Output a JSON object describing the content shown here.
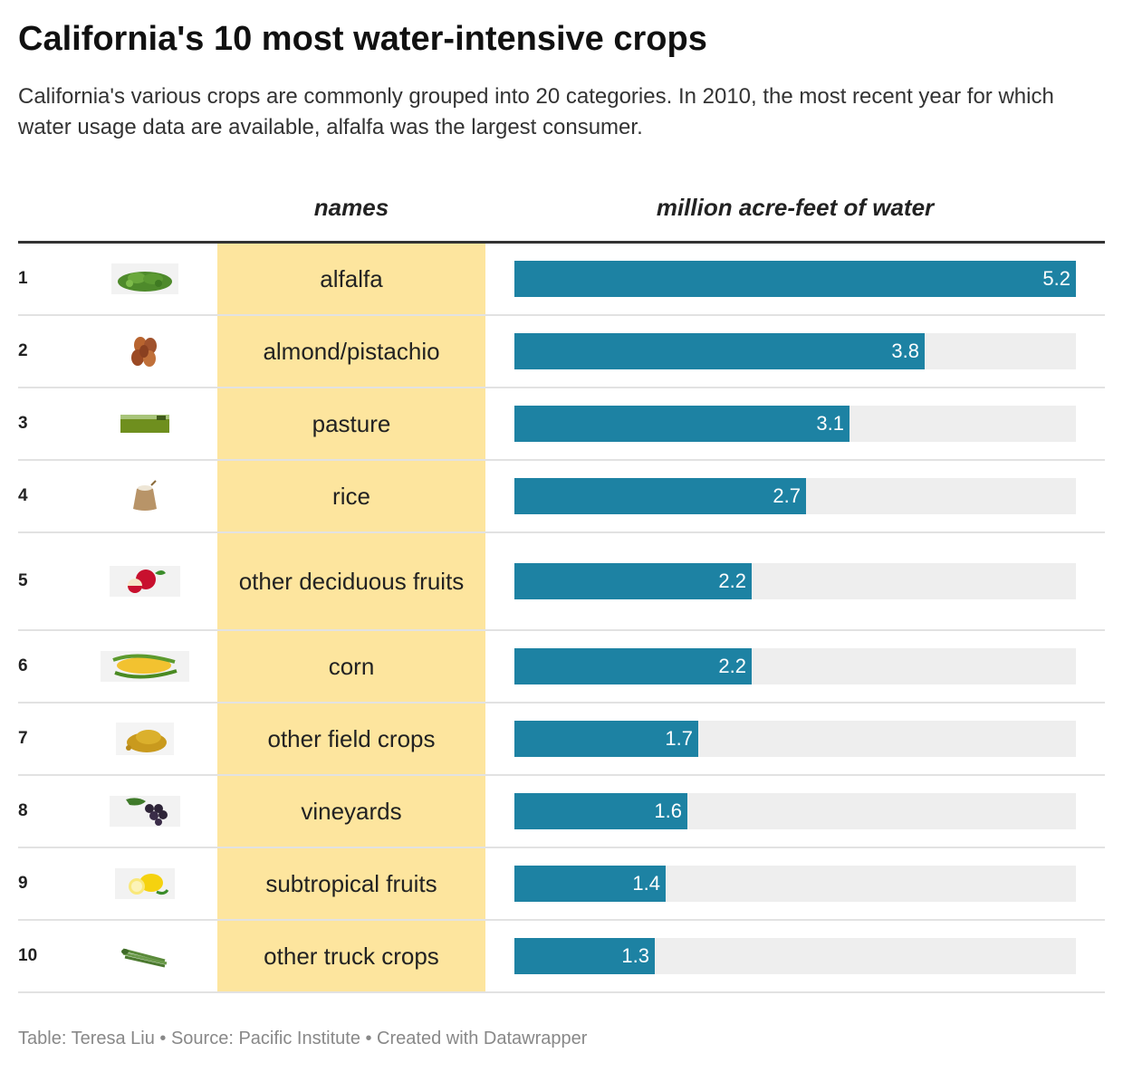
{
  "header": {
    "title": "California's 10 most water-intensive crops",
    "subtitle": "California's various crops are commonly grouped into 20 categories. In 2010, the most recent year for which water usage data are available, alfalfa was the largest consumer."
  },
  "columns": {
    "names": "names",
    "water": "million acre-feet of water"
  },
  "footer": "Table: Teresa Liu • Source: Pacific Institute • Created with Datawrapper",
  "colors": {
    "bar": "#1d82a3",
    "track": "#eeeeee",
    "names_column": "#fde59e"
  },
  "chart_data": {
    "type": "bar",
    "title": "California's 10 most water-intensive crops",
    "ylabel": "million acre-feet of water",
    "ylim": [
      0,
      5.2
    ],
    "categories": [
      "alfalfa",
      "almond/pistachio",
      "pasture",
      "rice",
      "other deciduous fruits",
      "corn",
      "other field crops",
      "vineyards",
      "subtropical fruits",
      "other truck crops"
    ],
    "values": [
      5.2,
      3.8,
      3.1,
      2.7,
      2.2,
      2.2,
      1.7,
      1.6,
      1.4,
      1.3
    ]
  },
  "rows": [
    {
      "rank": "1",
      "name": "alfalfa",
      "value": 5.2,
      "label": "5.2",
      "icon": "alfalfa-icon"
    },
    {
      "rank": "2",
      "name": "almond/pistachio",
      "value": 3.8,
      "label": "3.8",
      "icon": "almond-icon"
    },
    {
      "rank": "3",
      "name": "pasture",
      "value": 3.1,
      "label": "3.1",
      "icon": "pasture-icon"
    },
    {
      "rank": "4",
      "name": "rice",
      "value": 2.7,
      "label": "2.7",
      "icon": "rice-sack-icon"
    },
    {
      "rank": "5",
      "name": "other deciduous fruits",
      "value": 2.2,
      "label": "2.2",
      "icon": "apple-icon"
    },
    {
      "rank": "6",
      "name": "corn",
      "value": 2.2,
      "label": "2.2",
      "icon": "corn-icon"
    },
    {
      "rank": "7",
      "name": "other field crops",
      "value": 1.7,
      "label": "1.7",
      "icon": "grain-icon"
    },
    {
      "rank": "8",
      "name": "vineyards",
      "value": 1.6,
      "label": "1.6",
      "icon": "grapes-icon"
    },
    {
      "rank": "9",
      "name": "subtropical fruits",
      "value": 1.4,
      "label": "1.4",
      "icon": "lemon-icon"
    },
    {
      "rank": "10",
      "name": "other truck crops",
      "value": 1.3,
      "label": "1.3",
      "icon": "asparagus-icon"
    }
  ]
}
